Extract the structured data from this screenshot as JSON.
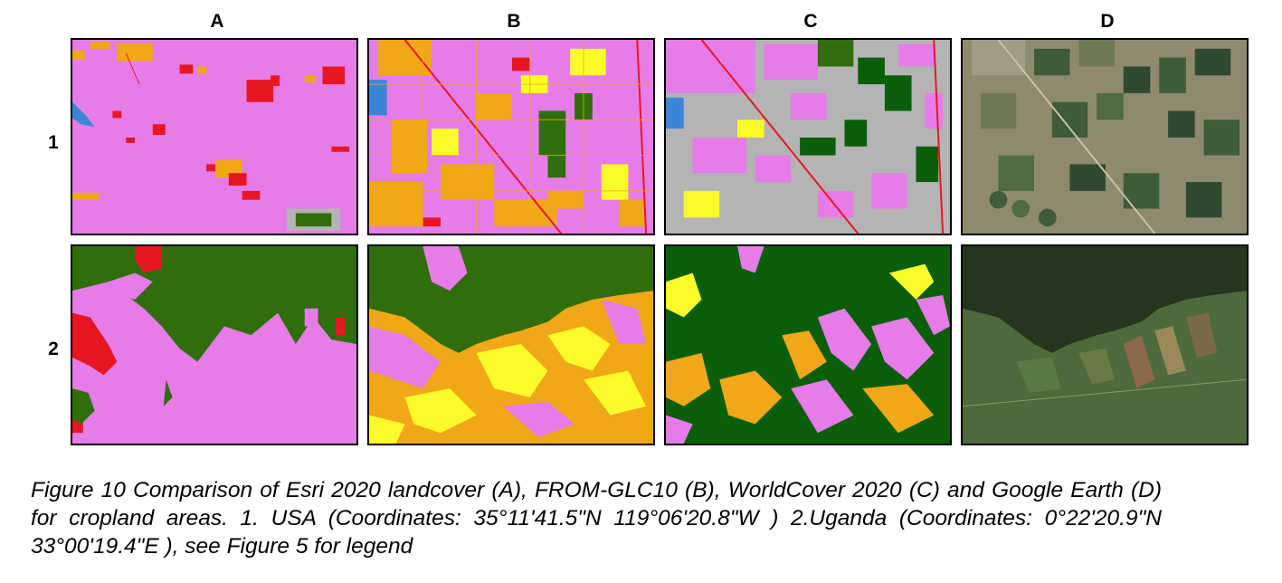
{
  "figure": {
    "columns": [
      "A",
      "B",
      "C",
      "D"
    ],
    "rows": [
      "1",
      "2"
    ],
    "panels": [
      {
        "id": "A1",
        "desc": "Esri 2020 landcover, USA"
      },
      {
        "id": "B1",
        "desc": "FROM-GLC10, USA"
      },
      {
        "id": "C1",
        "desc": "WorldCover 2020, USA"
      },
      {
        "id": "D1",
        "desc": "Google Earth, USA"
      },
      {
        "id": "A2",
        "desc": "Esri 2020 landcover, Uganda"
      },
      {
        "id": "B2",
        "desc": "FROM-GLC10, Uganda"
      },
      {
        "id": "C2",
        "desc": "WorldCover 2020, Uganda"
      },
      {
        "id": "D2",
        "desc": "Google Earth, Uganda"
      }
    ],
    "colors": {
      "cropland": "#e67ce7",
      "trees": "#2f6e0a",
      "grass": "#f0a818",
      "shrub": "#fbfb2a",
      "built": "#e81622",
      "water": "#3a87d8",
      "bare": "#b4b4b4",
      "dark_green": "#0a5e0a"
    }
  },
  "caption": "Figure 10 Comparison of Esri 2020 landcover (A), FROM-GLC10 (B), WorldCover 2020 (C) and Google Earth (D) for cropland areas. 1. USA (Coordinates: 35°11'41.5\"N 119°06'20.8\"W ) 2.Uganda (Coordinates: 0°22'20.9\"N 33°00'19.4\"E ), see Figure 5 for legend"
}
